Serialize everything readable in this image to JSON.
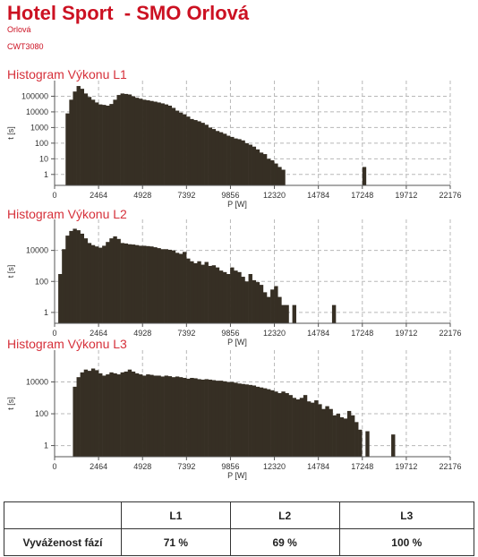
{
  "header": {
    "title": "Hotel Sport  - SMO Orlová",
    "location": "Orlová",
    "device": "CWT3080"
  },
  "colors": {
    "bar": "#362f24",
    "title": "#cc1122",
    "grid": "#b8b8b8"
  },
  "chart_data": [
    {
      "type": "bar",
      "title": "Histogram Výkonu L1",
      "xlabel": "P [W]",
      "ylabel": "t [s]",
      "log_y": true,
      "ylim": [
        0.2,
        1000000
      ],
      "xlim": [
        0,
        22176
      ],
      "xticks": [
        "0",
        "2464",
        "4928",
        "7392",
        "9856",
        "12320",
        "14784",
        "17248",
        "19712",
        "22176"
      ],
      "yticks": [
        "1",
        "10",
        "100",
        "1000",
        "10000",
        "100000"
      ],
      "grid": true,
      "bin_width": 205,
      "x": [
        616,
        821,
        1026,
        1231,
        1436,
        1641,
        1846,
        2051,
        2256,
        2461,
        2666,
        2871,
        3076,
        3281,
        3486,
        3691,
        3896,
        4101,
        4306,
        4511,
        4716,
        4921,
        5126,
        5331,
        5536,
        5741,
        5946,
        6151,
        6356,
        6561,
        6766,
        6971,
        7176,
        7381,
        7586,
        7791,
        7996,
        8201,
        8406,
        8611,
        8816,
        9021,
        9226,
        9431,
        9636,
        9841,
        10046,
        10251,
        10456,
        10661,
        10866,
        11071,
        11276,
        11481,
        11686,
        11891,
        12096,
        12301,
        12506,
        12711,
        17248
      ],
      "values": [
        8000,
        60000,
        200000,
        450000,
        300000,
        150000,
        90000,
        60000,
        40000,
        30000,
        28000,
        25000,
        32000,
        60000,
        120000,
        150000,
        140000,
        130000,
        100000,
        80000,
        70000,
        60000,
        55000,
        50000,
        45000,
        40000,
        35000,
        30000,
        25000,
        18000,
        12000,
        9000,
        7000,
        5000,
        3500,
        3000,
        2500,
        2000,
        1500,
        1000,
        800,
        600,
        500,
        400,
        300,
        250,
        200,
        180,
        150,
        100,
        80,
        60,
        40,
        25,
        20,
        10,
        8,
        5,
        3,
        2,
        3
      ]
    },
    {
      "type": "bar",
      "title": "Histogram Výkonu L2",
      "xlabel": "P [W]",
      "ylabel": "t [s]",
      "log_y": true,
      "ylim": [
        0.2,
        1000000
      ],
      "xlim": [
        0,
        22176
      ],
      "xticks": [
        "0",
        "2464",
        "4928",
        "7392",
        "9856",
        "12320",
        "14784",
        "17248",
        "19712",
        "22176"
      ],
      "yticks": [
        "1",
        "100",
        "10000"
      ],
      "grid": true,
      "bin_width": 205,
      "x": [
        205,
        410,
        615,
        820,
        1025,
        1230,
        1435,
        1640,
        1845,
        2050,
        2255,
        2460,
        2665,
        2870,
        3075,
        3280,
        3485,
        3690,
        3895,
        4100,
        4305,
        4510,
        4715,
        4920,
        5125,
        5330,
        5535,
        5740,
        5945,
        6150,
        6355,
        6560,
        6765,
        6970,
        7175,
        7380,
        7585,
        7790,
        7995,
        8200,
        8405,
        8610,
        8815,
        9020,
        9225,
        9430,
        9635,
        9840,
        10045,
        10250,
        10455,
        10660,
        10865,
        11070,
        11275,
        11480,
        11685,
        11890,
        12095,
        12300,
        12505,
        12710,
        12915,
        13325,
        15550
      ],
      "values": [
        300,
        12000,
        90000,
        180000,
        250000,
        200000,
        120000,
        60000,
        30000,
        22000,
        18000,
        15000,
        20000,
        35000,
        60000,
        80000,
        55000,
        30000,
        28000,
        25000,
        24000,
        22000,
        20000,
        20000,
        19000,
        18000,
        16000,
        14000,
        12000,
        12000,
        11000,
        10000,
        7000,
        6000,
        8000,
        3000,
        2000,
        1500,
        2000,
        1200,
        1800,
        1000,
        1100,
        800,
        500,
        400,
        300,
        800,
        500,
        400,
        200,
        100,
        300,
        120,
        90,
        60,
        20,
        10,
        30,
        50,
        10,
        3,
        3,
        3,
        3
      ]
    },
    {
      "type": "bar",
      "title": "Histogram Výkonu L3",
      "xlabel": "P [W]",
      "ylabel": "t [s]",
      "log_y": true,
      "ylim": [
        0.2,
        1000000
      ],
      "xlim": [
        0,
        22176
      ],
      "xticks": [
        "0",
        "2464",
        "4928",
        "7392",
        "9856",
        "12320",
        "14784",
        "17248",
        "19712",
        "22176"
      ],
      "yticks": [
        "1",
        "100",
        "10000"
      ],
      "grid": true,
      "bin_width": 205,
      "x": [
        1026,
        1231,
        1436,
        1641,
        1846,
        2051,
        2256,
        2461,
        2666,
        2871,
        3076,
        3281,
        3486,
        3691,
        3896,
        4101,
        4306,
        4511,
        4716,
        4921,
        5126,
        5331,
        5536,
        5741,
        5946,
        6151,
        6356,
        6561,
        6766,
        6971,
        7176,
        7381,
        7586,
        7791,
        7996,
        8201,
        8406,
        8611,
        8816,
        9021,
        9226,
        9431,
        9636,
        9841,
        10046,
        10251,
        10456,
        10661,
        10866,
        11071,
        11276,
        11481,
        11686,
        11891,
        12096,
        12301,
        12506,
        12711,
        12916,
        13121,
        13326,
        13531,
        13736,
        13941,
        14146,
        14351,
        14556,
        14761,
        14966,
        15171,
        15376,
        15581,
        15786,
        15991,
        16196,
        16401,
        16606,
        16811,
        17016,
        17425,
        18868
      ],
      "values": [
        5000,
        20000,
        40000,
        60000,
        50000,
        70000,
        55000,
        35000,
        25000,
        30000,
        40000,
        35000,
        30000,
        40000,
        45000,
        60000,
        45000,
        35000,
        30000,
        25000,
        30000,
        28000,
        25000,
        25000,
        22000,
        25000,
        23000,
        20000,
        22000,
        20000,
        18000,
        16000,
        18000,
        17000,
        15000,
        14000,
        15000,
        14000,
        13000,
        12000,
        12000,
        11000,
        10000,
        10000,
        9000,
        8000,
        7500,
        7000,
        6500,
        6000,
        5000,
        4500,
        4000,
        3500,
        3000,
        2500,
        2000,
        2500,
        2000,
        1500,
        1000,
        800,
        1000,
        1500,
        600,
        500,
        700,
        400,
        200,
        300,
        200,
        80,
        100,
        60,
        50,
        150,
        80,
        30,
        10,
        8,
        5
      ]
    }
  ],
  "balance_table": {
    "headers": [
      "",
      "L1",
      "L2",
      "L3"
    ],
    "row_label": "Vyváženost fází",
    "values": [
      "71 %",
      "69 %",
      "100 %"
    ]
  }
}
